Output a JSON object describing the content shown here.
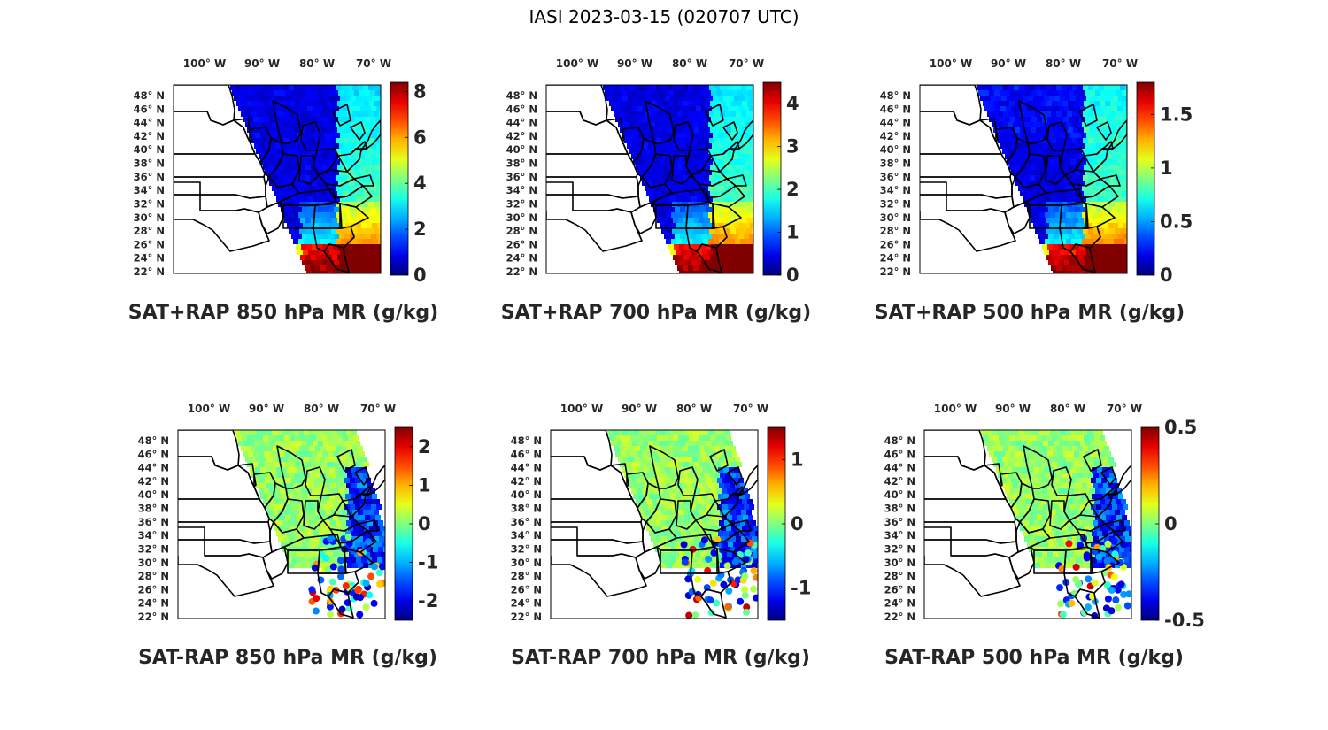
{
  "figure_title": "IASI 2023-03-15 (020707 UTC)",
  "lon_ticks": [
    "100",
    "90",
    "80",
    "70"
  ],
  "lon_suffix": "W",
  "lat_ticks": [
    "48",
    "46",
    "44",
    "42",
    "40",
    "38",
    "36",
    "34",
    "32",
    "30",
    "28",
    "26",
    "24",
    "22"
  ],
  "lat_suffix": "N",
  "degree_symbol": "°",
  "colormap": "jet",
  "panels": [
    {
      "id": "p1",
      "title": "SAT+RAP 850 hPa MR (g/kg)",
      "kind": "sum",
      "clim": [
        0,
        8.4
      ],
      "cbar_ticks": [
        {
          "value": 8,
          "label": "8"
        },
        {
          "value": 6,
          "label": "6"
        },
        {
          "value": 4,
          "label": "4"
        },
        {
          "value": 2,
          "label": "2"
        },
        {
          "value": 0,
          "label": "0"
        }
      ]
    },
    {
      "id": "p2",
      "title": "SAT+RAP 700 hPa MR (g/kg)",
      "kind": "sum",
      "clim": [
        0,
        4.5
      ],
      "cbar_ticks": [
        {
          "value": 4,
          "label": "4"
        },
        {
          "value": 3,
          "label": "3"
        },
        {
          "value": 2,
          "label": "2"
        },
        {
          "value": 1,
          "label": "1"
        },
        {
          "value": 0,
          "label": "0"
        }
      ]
    },
    {
      "id": "p3",
      "title": "SAT+RAP 500 hPa MR (g/kg)",
      "kind": "sum",
      "clim": [
        0,
        1.8
      ],
      "cbar_ticks": [
        {
          "value": 1.5,
          "label": "1.5"
        },
        {
          "value": 1,
          "label": "1"
        },
        {
          "value": 0.5,
          "label": "0.5"
        },
        {
          "value": 0,
          "label": "0"
        }
      ]
    },
    {
      "id": "p4",
      "title": "SAT-RAP 850 hPa MR (g/kg)",
      "kind": "diff",
      "clim": [
        -2.5,
        2.5
      ],
      "cbar_ticks": [
        {
          "value": 2,
          "label": "2"
        },
        {
          "value": 1,
          "label": "1"
        },
        {
          "value": 0,
          "label": "0"
        },
        {
          "value": -1,
          "label": "-1"
        },
        {
          "value": -2,
          "label": "-2"
        }
      ]
    },
    {
      "id": "p5",
      "title": "SAT-RAP 700 hPa MR (g/kg)",
      "kind": "diff",
      "clim": [
        -1.5,
        1.5
      ],
      "cbar_ticks": [
        {
          "value": 1,
          "label": "1"
        },
        {
          "value": 0,
          "label": "0"
        },
        {
          "value": -1,
          "label": "-1"
        }
      ]
    },
    {
      "id": "p6",
      "title": "SAT-RAP 500 hPa MR (g/kg)",
      "kind": "diff",
      "clim": [
        -0.5,
        0.5
      ],
      "cbar_ticks": [
        {
          "value": 0.5,
          "label": "0.5"
        },
        {
          "value": 0,
          "label": "0"
        },
        {
          "value": -0.5,
          "label": "-0.5"
        }
      ]
    }
  ]
}
